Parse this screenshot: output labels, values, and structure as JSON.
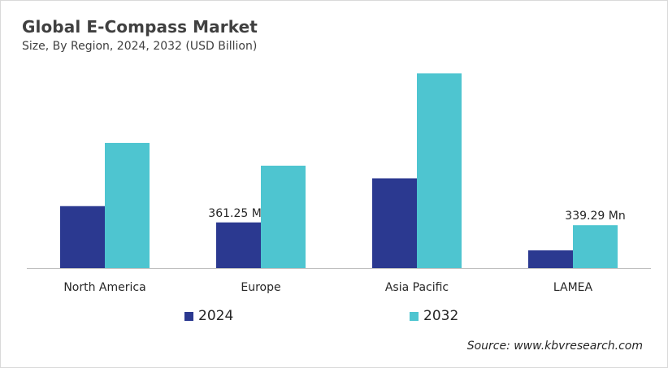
{
  "header": {
    "title": "Global E-Compass  Market",
    "subtitle": "Size, By Region, 2024, 2032 (USD Billion)"
  },
  "source": "Source: www.kbvresearch.com",
  "colors": {
    "series_2024": "#2b3990",
    "series_2032": "#4ec5d0",
    "axis": "#bfbfbf"
  },
  "chart_data": {
    "type": "bar",
    "title": "Global E-Compass  Market",
    "subtitle": "Size, By Region, 2024, 2032 (USD Billion)",
    "categories": [
      "North America",
      "Europe",
      "Asia Pacific",
      "LAMEA"
    ],
    "series": [
      {
        "name": "2024",
        "values": [
          0.49,
          0.36125,
          0.71,
          0.14
        ]
      },
      {
        "name": "2032",
        "values": [
          0.99,
          0.81,
          1.54,
          0.33929
        ]
      }
    ],
    "annotations": [
      {
        "category": "Europe",
        "series": "2024",
        "text": "361.25 Mn"
      },
      {
        "category": "LAMEA",
        "series": "2032",
        "text": "339.29 Mn"
      }
    ],
    "xlabel": "",
    "ylabel": "",
    "ylim": [
      0,
      1.6
    ],
    "grid": false,
    "legend": "bottom",
    "y_axis_visible": false
  }
}
